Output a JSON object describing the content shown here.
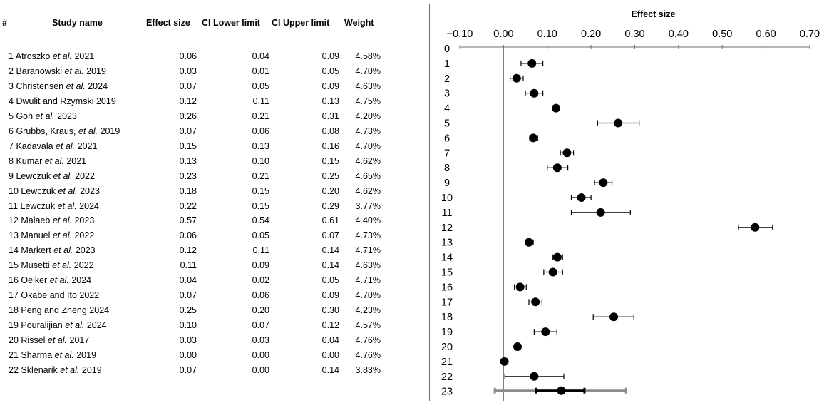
{
  "table": {
    "headers": {
      "num": "#",
      "study": "Study name",
      "effect": "Effect size",
      "lower": "CI Lower limit",
      "upper": "CI Upper limit",
      "weight": "Weight"
    },
    "rows": [
      {
        "num": "1",
        "author": "Atroszko ",
        "etal": "et al.",
        "year": " 2021",
        "es": "0.06",
        "lo": "0.04",
        "hi": "0.09",
        "w": "4.58%"
      },
      {
        "num": "2",
        "author": "Baranowski ",
        "etal": "et al.",
        "year": " 2019",
        "es": "0.03",
        "lo": "0.01",
        "hi": "0.05",
        "w": "4.70%"
      },
      {
        "num": "3",
        "author": "Christensen ",
        "etal": "et al.",
        "year": " 2024",
        "es": "0.07",
        "lo": "0.05",
        "hi": "0.09",
        "w": "4.63%"
      },
      {
        "num": "4",
        "author": "Dwulit and Rzymski 2019",
        "etal": "",
        "year": "",
        "es": "0.12",
        "lo": "0.11",
        "hi": "0.13",
        "w": "4.75%"
      },
      {
        "num": "5",
        "author": "Goh ",
        "etal": "et al.",
        "year": " 2023",
        "es": "0.26",
        "lo": "0.21",
        "hi": "0.31",
        "w": "4.20%"
      },
      {
        "num": "6",
        "author": "Grubbs, Kraus, ",
        "etal": "et al.",
        "year": " 2019",
        "es": "0.07",
        "lo": "0.06",
        "hi": "0.08",
        "w": "4.73%"
      },
      {
        "num": "7",
        "author": "Kadavala ",
        "etal": "et al.",
        "year": " 2021",
        "es": "0.15",
        "lo": "0.13",
        "hi": "0.16",
        "w": "4.70%"
      },
      {
        "num": "8",
        "author": "Kumar ",
        "etal": "et al.",
        "year": " 2021",
        "es": "0.13",
        "lo": "0.10",
        "hi": "0.15",
        "w": "4.62%"
      },
      {
        "num": "9",
        "author": "Lewczuk ",
        "etal": "et al.",
        "year": " 2022",
        "es": "0.23",
        "lo": "0.21",
        "hi": "0.25",
        "w": "4.65%"
      },
      {
        "num": "10",
        "author": "Lewczuk ",
        "etal": "et al.",
        "year": " 2023",
        "es": "0.18",
        "lo": "0.15",
        "hi": "0.20",
        "w": "4.62%"
      },
      {
        "num": "11",
        "author": "Lewczuk ",
        "etal": "et al.",
        "year": " 2024",
        "es": "0.22",
        "lo": "0.15",
        "hi": "0.29",
        "w": "3.77%"
      },
      {
        "num": "12",
        "author": "Malaeb ",
        "etal": "et al.",
        "year": " 2023",
        "es": "0.57",
        "lo": "0.54",
        "hi": "0.61",
        "w": "4.40%"
      },
      {
        "num": "13",
        "author": "Manuel ",
        "etal": "et al.",
        "year": " 2022",
        "es": "0.06",
        "lo": "0.05",
        "hi": "0.07",
        "w": "4.73%"
      },
      {
        "num": "14",
        "author": "Markert ",
        "etal": "et al.",
        "year": " 2023",
        "es": "0.12",
        "lo": "0.11",
        "hi": "0.14",
        "w": "4.71%"
      },
      {
        "num": "15",
        "author": "Musetti ",
        "etal": "et al.",
        "year": " 2022",
        "es": "0.11",
        "lo": "0.09",
        "hi": "0.14",
        "w": "4.63%"
      },
      {
        "num": "16",
        "author": "Oelker ",
        "etal": "et al.",
        "year": " 2024",
        "es": "0.04",
        "lo": "0.02",
        "hi": "0.05",
        "w": "4.71%"
      },
      {
        "num": "17",
        "author": "Okabe and Ito 2022",
        "etal": "",
        "year": "",
        "es": "0.07",
        "lo": "0.06",
        "hi": "0.09",
        "w": "4.70%"
      },
      {
        "num": "18",
        "author": "Peng and Zheng 2024",
        "etal": "",
        "year": "",
        "es": "0.25",
        "lo": "0.20",
        "hi": "0.30",
        "w": "4.23%"
      },
      {
        "num": "19",
        "author": "Pouralijian ",
        "etal": "et al.",
        "year": " 2024",
        "es": "0.10",
        "lo": "0.07",
        "hi": "0.12",
        "w": "4.57%"
      },
      {
        "num": "20",
        "author": "Rissel ",
        "etal": "et al.",
        "year": " 2017",
        "es": "0.03",
        "lo": "0.03",
        "hi": "0.04",
        "w": "4.76%"
      },
      {
        "num": "21",
        "author": "Sharma ",
        "etal": "et al.",
        "year": " 2019",
        "es": "0.00",
        "lo": "0.00",
        "hi": "0.00",
        "w": "4.76%"
      },
      {
        "num": "22",
        "author": "Sklenarik ",
        "etal": "et al.",
        "year": " 2019",
        "es": "0.07",
        "lo": "0.00",
        "hi": "0.14",
        "w": "3.83%"
      }
    ]
  },
  "chart_data": {
    "type": "scatter",
    "title": "Effect size",
    "xlim": [
      -0.1,
      0.7
    ],
    "xticks": [
      "−0.10",
      "0.00",
      "0.10",
      "0.20",
      "0.30",
      "0.40",
      "0.50",
      "0.60",
      "0.70"
    ],
    "reference_line_x": 0.0,
    "row_labels": [
      "0",
      "1",
      "2",
      "3",
      "4",
      "5",
      "6",
      "7",
      "8",
      "9",
      "10",
      "11",
      "12",
      "13",
      "14",
      "15",
      "16",
      "17",
      "18",
      "19",
      "20",
      "21",
      "22",
      "23"
    ],
    "studies": [
      {
        "row": 1,
        "es": 0.065,
        "lo": 0.04,
        "hi": 0.09
      },
      {
        "row": 2,
        "es": 0.03,
        "lo": 0.015,
        "hi": 0.045
      },
      {
        "row": 3,
        "es": 0.07,
        "lo": 0.05,
        "hi": 0.09
      },
      {
        "row": 4,
        "es": 0.12,
        "lo": 0.115,
        "hi": 0.127
      },
      {
        "row": 5,
        "es": 0.262,
        "lo": 0.215,
        "hi": 0.31
      },
      {
        "row": 6,
        "es": 0.068,
        "lo": 0.06,
        "hi": 0.078
      },
      {
        "row": 7,
        "es": 0.145,
        "lo": 0.13,
        "hi": 0.16
      },
      {
        "row": 8,
        "es": 0.123,
        "lo": 0.1,
        "hi": 0.147
      },
      {
        "row": 9,
        "es": 0.228,
        "lo": 0.208,
        "hi": 0.248
      },
      {
        "row": 10,
        "es": 0.178,
        "lo": 0.155,
        "hi": 0.2
      },
      {
        "row": 11,
        "es": 0.222,
        "lo": 0.155,
        "hi": 0.29
      },
      {
        "row": 12,
        "es": 0.575,
        "lo": 0.537,
        "hi": 0.615
      },
      {
        "row": 13,
        "es": 0.058,
        "lo": 0.05,
        "hi": 0.068
      },
      {
        "row": 14,
        "es": 0.123,
        "lo": 0.113,
        "hi": 0.135
      },
      {
        "row": 15,
        "es": 0.113,
        "lo": 0.092,
        "hi": 0.135
      },
      {
        "row": 16,
        "es": 0.038,
        "lo": 0.025,
        "hi": 0.052
      },
      {
        "row": 17,
        "es": 0.073,
        "lo": 0.058,
        "hi": 0.088
      },
      {
        "row": 18,
        "es": 0.252,
        "lo": 0.205,
        "hi": 0.298
      },
      {
        "row": 19,
        "es": 0.096,
        "lo": 0.07,
        "hi": 0.122
      },
      {
        "row": 20,
        "es": 0.032,
        "lo": 0.03,
        "hi": 0.034
      },
      {
        "row": 21,
        "es": 0.002,
        "lo": 0.0,
        "hi": 0.003
      },
      {
        "row": 22,
        "es": 0.07,
        "lo": 0.003,
        "hi": 0.138
      }
    ],
    "pooled": {
      "row": 23,
      "es": 0.132,
      "ci_lo": 0.075,
      "ci_hi": 0.185,
      "pi_lo": -0.02,
      "pi_hi": 0.28
    },
    "colors": {
      "marker": "#000000",
      "axis": "#6e6e6e",
      "prediction_interval": "#8c8c8c"
    }
  }
}
